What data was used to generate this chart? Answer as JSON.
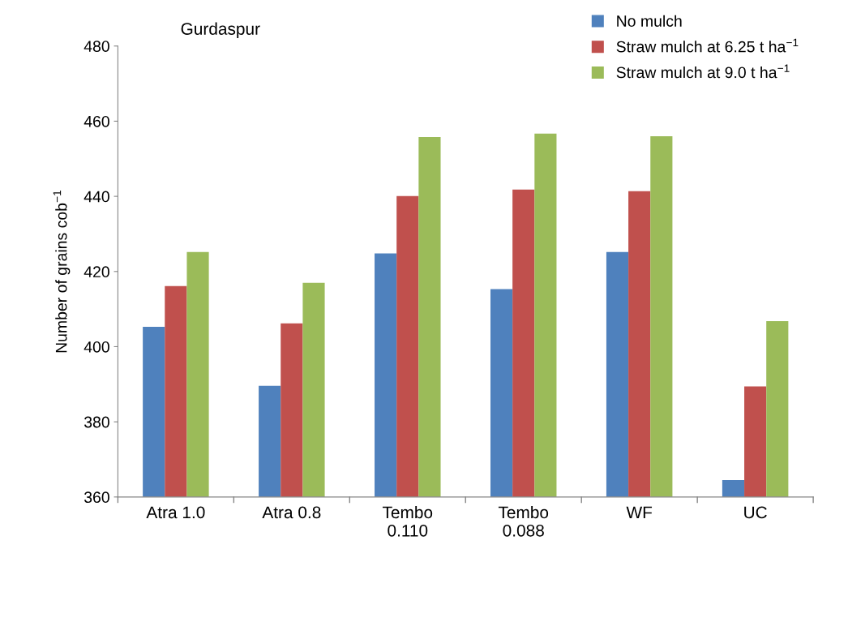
{
  "chart_data": {
    "type": "bar",
    "title": "Gurdaspur",
    "ylabel": "Number of grains cob$^{−1}$",
    "categories": [
      "Atra 1.0",
      "Atra 0.8",
      "Tembo\n0.110",
      "Tembo\n0.088",
      "WF",
      "UC"
    ],
    "series": [
      {
        "name": "No mulch",
        "color": "#4f81bd",
        "values": [
          405.3,
          389.6,
          424.8,
          415.3,
          425.2,
          364.5
        ]
      },
      {
        "name": "Straw mulch at 6.25 t ha$^{−1}$",
        "color": "#c0504d",
        "values": [
          416.1,
          406.2,
          440.1,
          441.8,
          441.4,
          389.4
        ]
      },
      {
        "name": "Straw mulch at 9.0 t ha$^{−1}$",
        "color": "#9bbb59",
        "values": [
          425.2,
          417.0,
          455.8,
          456.7,
          456.0,
          406.8
        ]
      }
    ],
    "ylim": [
      360,
      480
    ],
    "yticks": [
      360,
      380,
      400,
      420,
      440,
      460,
      480
    ],
    "grid": false,
    "legend": "top right"
  }
}
